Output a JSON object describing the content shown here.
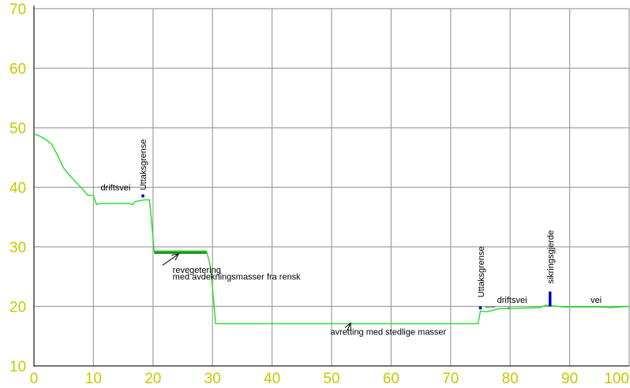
{
  "chart_data": {
    "type": "line",
    "xlim": [
      0,
      100
    ],
    "ylim": [
      10,
      70
    ],
    "xticks": [
      "0",
      "10",
      "20",
      "30",
      "40",
      "50",
      "60",
      "70",
      "80",
      "90",
      "100"
    ],
    "yticks": [
      "10",
      "20",
      "30",
      "40",
      "50",
      "60",
      "70"
    ],
    "grid": true,
    "colors": {
      "tick_labels": "#c8c800",
      "grid": "#a0a0a0",
      "axes": "#000000",
      "profile": "#22dd22",
      "revegetation": "#117711",
      "markers": "#0000cc"
    },
    "series": [
      {
        "points": [
          [
            0,
            49
          ],
          [
            1,
            48.6
          ],
          [
            2,
            48
          ],
          [
            3,
            47.2
          ],
          [
            4,
            45.3
          ],
          [
            5,
            43.2
          ],
          [
            6,
            42
          ],
          [
            7,
            40.9
          ],
          [
            8,
            39.9
          ],
          [
            9,
            38.7
          ],
          [
            10,
            38.6
          ],
          [
            10.5,
            37.1
          ],
          [
            11,
            37.3
          ],
          [
            14,
            37.3
          ],
          [
            16,
            37.3
          ],
          [
            16.6,
            37.1
          ],
          [
            17,
            37.6
          ],
          [
            18.5,
            37.9
          ],
          [
            19.4,
            37.9
          ],
          [
            19.7,
            35
          ],
          [
            20,
            31.5
          ],
          [
            20.2,
            29.2
          ],
          [
            29,
            29.2
          ],
          [
            29.6,
            27
          ],
          [
            30.2,
            21
          ],
          [
            30.5,
            17.1
          ],
          [
            74.6,
            17.1
          ],
          [
            75,
            19.2
          ],
          [
            76,
            19.1
          ],
          [
            77,
            19.3
          ],
          [
            78,
            19.6
          ],
          [
            85,
            19.8
          ],
          [
            86,
            20.2
          ],
          [
            89,
            19.9
          ],
          [
            95,
            19.9
          ],
          [
            97,
            19.8
          ],
          [
            100,
            20
          ]
        ]
      }
    ],
    "revegetation_band": {
      "x": [
        20.2,
        29
      ],
      "y": 29.1
    },
    "markers": [
      {
        "x": 18.3,
        "y": 38.3,
        "height": 0.5
      },
      {
        "x": 75,
        "y": 19.5,
        "height": 0.5
      },
      {
        "x": 86.7,
        "y": 20,
        "height": 2.5
      }
    ],
    "dashes": [
      {
        "x": [
          75.8,
          77.5
        ],
        "y": 19.9
      },
      {
        "x": 79.8,
        "y": 19.8,
        "mark": "+"
      }
    ],
    "annotations": [
      {
        "text": "driftsvei",
        "x": 11.2,
        "y": 39.5,
        "rotate": false
      },
      {
        "text": "Uttaksgrense",
        "x": 18.8,
        "y": 39.5,
        "rotate": true
      },
      {
        "text": "revegetering",
        "x": 23.3,
        "y": 25.6,
        "rotate": false
      },
      {
        "text": "med avdekningsmasser fra rensk",
        "x": 23.3,
        "y": 24.5,
        "rotate": false
      },
      {
        "text": "avretting med stedlige masser",
        "x": 49.8,
        "y": 15.2,
        "rotate": false
      },
      {
        "text": "Uttaksgrense",
        "x": 75.6,
        "y": 21.5,
        "rotate": true
      },
      {
        "text": "driftsvei",
        "x": 77.8,
        "y": 20.6,
        "rotate": false
      },
      {
        "text": "sikringsgjerde",
        "x": 87.3,
        "y": 23.8,
        "rotate": true
      },
      {
        "text": "vei",
        "x": 93.5,
        "y": 20.6,
        "rotate": false
      }
    ],
    "arrows": [
      {
        "from": [
          21.6,
          26.9
        ],
        "to": [
          24.3,
          28.8
        ]
      },
      {
        "from": [
          52.6,
          15.9
        ],
        "to": [
          53.2,
          17.2
        ]
      }
    ]
  }
}
